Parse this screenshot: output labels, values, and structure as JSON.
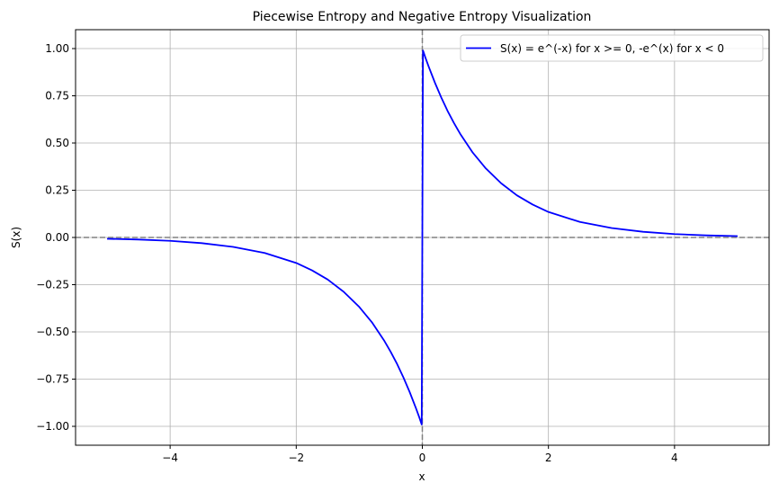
{
  "chart_data": {
    "type": "line",
    "title": "Piecewise Entropy and Negative Entropy Visualization",
    "xlabel": "x",
    "ylabel": "S(x)",
    "xlim": [
      -5.5,
      5.5
    ],
    "ylim": [
      -1.1,
      1.1
    ],
    "grid": true,
    "legend_position": "top-right",
    "x_ticks": [
      -4,
      -2,
      0,
      2,
      4
    ],
    "x_tick_labels": [
      "−4",
      "−2",
      "0",
      "2",
      "4"
    ],
    "y_ticks": [
      1.0,
      0.75,
      0.5,
      0.25,
      0.0,
      -0.25,
      -0.5,
      -0.75,
      -1.0
    ],
    "y_tick_labels": [
      "1.00",
      "0.75",
      "0.50",
      "0.25",
      "0.00",
      "−0.25",
      "−0.50",
      "−0.75",
      "−1.00"
    ],
    "series": [
      {
        "name": "S(x) = e^(-x) for x >= 0, -e^(x) for x < 0",
        "color": "#0000ff",
        "x": [
          -5.0,
          -4.5,
          -4.0,
          -3.5,
          -3.0,
          -2.5,
          -2.0,
          -1.75,
          -1.5,
          -1.25,
          -1.0,
          -0.8,
          -0.6,
          -0.5,
          -0.4,
          -0.3,
          -0.2,
          -0.1,
          -0.05,
          -0.01,
          0.01,
          0.05,
          0.1,
          0.2,
          0.3,
          0.4,
          0.5,
          0.6,
          0.8,
          1.0,
          1.25,
          1.5,
          1.75,
          2.0,
          2.5,
          3.0,
          3.5,
          4.0,
          4.5,
          5.0
        ],
        "y": [
          -0.007,
          -0.011,
          -0.018,
          -0.03,
          -0.05,
          -0.082,
          -0.135,
          -0.174,
          -0.223,
          -0.287,
          -0.368,
          -0.449,
          -0.549,
          -0.607,
          -0.67,
          -0.741,
          -0.819,
          -0.905,
          -0.951,
          -0.99,
          0.99,
          0.951,
          0.905,
          0.819,
          0.741,
          0.67,
          0.607,
          0.549,
          0.449,
          0.368,
          0.287,
          0.223,
          0.174,
          0.135,
          0.082,
          0.05,
          0.03,
          0.018,
          0.011,
          0.007
        ]
      }
    ],
    "reference_lines": [
      {
        "orientation": "horizontal",
        "value": 0,
        "color": "#808080",
        "style": "dashed"
      },
      {
        "orientation": "vertical",
        "value": 0,
        "color": "#808080",
        "style": "dashed"
      }
    ]
  }
}
